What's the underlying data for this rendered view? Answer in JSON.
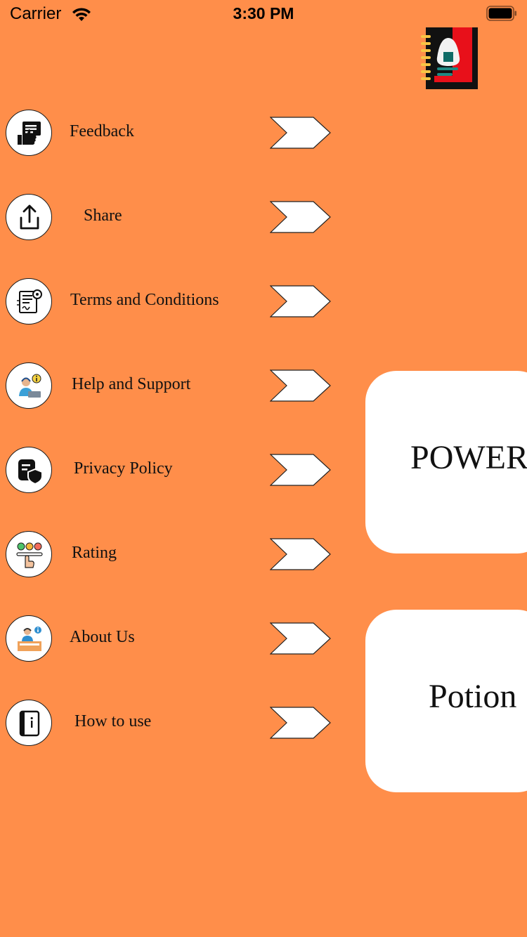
{
  "status_bar": {
    "carrier": "Carrier",
    "time": "3:30 PM"
  },
  "colors": {
    "background": "#FF8E4A",
    "card": "#FFFFFF",
    "logo_red": "#E8101A",
    "logo_black": "#111111"
  },
  "app_logo": {
    "icon": "notebook-logo-icon"
  },
  "menu": {
    "items": [
      {
        "label": "Feedback",
        "icon": "feedback-icon"
      },
      {
        "label": "Share",
        "icon": "share-icon"
      },
      {
        "label": "Terms and Conditions",
        "icon": "terms-document-icon"
      },
      {
        "label": "Help and Support",
        "icon": "support-agent-icon"
      },
      {
        "label": "Privacy Policy",
        "icon": "privacy-shield-icon"
      },
      {
        "label": "Rating",
        "icon": "rating-icon"
      },
      {
        "label": "About Us",
        "icon": "about-info-icon"
      },
      {
        "label": "How to use",
        "icon": "how-to-use-icon"
      }
    ]
  },
  "cards": [
    {
      "label": "POWER"
    },
    {
      "label": "Potion"
    }
  ]
}
